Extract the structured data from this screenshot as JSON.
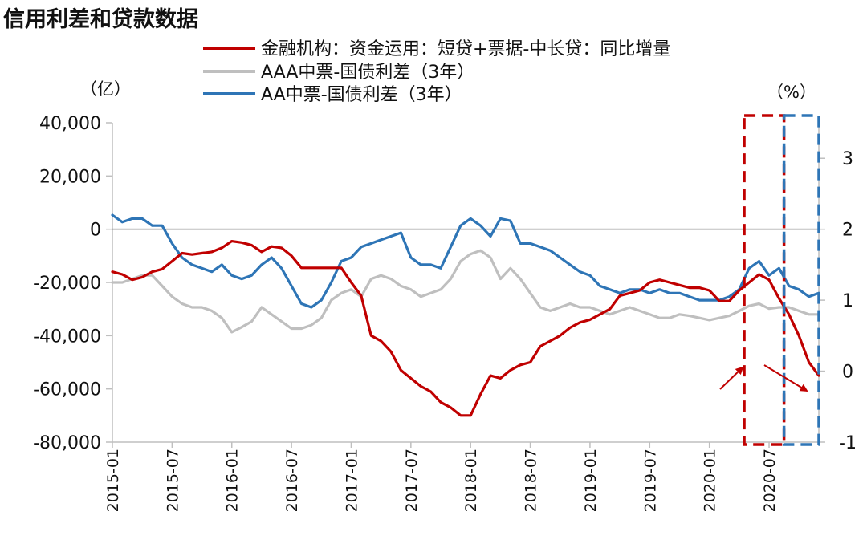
{
  "chart_data": {
    "type": "line",
    "title": "信用利差和贷款数据",
    "left_axis_unit": "（亿）",
    "right_axis_unit": "（%）",
    "left_axis": {
      "min": -80000,
      "max": 40000,
      "ticks": [
        40000,
        20000,
        0,
        -20000,
        -40000,
        -60000,
        -80000
      ],
      "tick_labels": [
        "40,000",
        "20,000",
        "0",
        "-20,000",
        "-40,000",
        "-60,000",
        "-80,000"
      ]
    },
    "right_axis": {
      "min": -1,
      "max": 3.5,
      "ticks": [
        3,
        2,
        1,
        0,
        -1
      ],
      "tick_labels": [
        "3",
        "2",
        "1",
        "0",
        "-1"
      ]
    },
    "x_tick_labels": [
      "2015-01",
      "2015-07",
      "2016-01",
      "2016-07",
      "2017-01",
      "2017-07",
      "2018-01",
      "2018-07",
      "2019-01",
      "2019-07",
      "2020-01",
      "2020-07"
    ],
    "x_range_months": [
      0,
      71
    ],
    "series": [
      {
        "name": "金融机构：资金运用：短贷+票据-中长贷：同比增量",
        "axis": "left",
        "color": "#c00000",
        "points": [
          [
            0,
            -16000
          ],
          [
            1,
            -17000
          ],
          [
            2,
            -19000
          ],
          [
            3,
            -18000
          ],
          [
            4,
            -16000
          ],
          [
            5,
            -15000
          ],
          [
            6,
            -12000
          ],
          [
            7,
            -9000
          ],
          [
            8,
            -9500
          ],
          [
            9,
            -9000
          ],
          [
            10,
            -8500
          ],
          [
            11,
            -7000
          ],
          [
            12,
            -4500
          ],
          [
            13,
            -5000
          ],
          [
            14,
            -6000
          ],
          [
            15,
            -8500
          ],
          [
            16,
            -6500
          ],
          [
            17,
            -7000
          ],
          [
            18,
            -10000
          ],
          [
            19,
            -14500
          ],
          [
            20,
            -14500
          ],
          [
            21,
            -14500
          ],
          [
            22,
            -14500
          ],
          [
            23,
            -14500
          ],
          [
            24,
            -20000
          ],
          [
            25,
            -25000
          ],
          [
            26,
            -40000
          ],
          [
            27,
            -42000
          ],
          [
            28,
            -46000
          ],
          [
            29,
            -53000
          ],
          [
            30,
            -56000
          ],
          [
            31,
            -59000
          ],
          [
            32,
            -61000
          ],
          [
            33,
            -65000
          ],
          [
            34,
            -67000
          ],
          [
            35,
            -70000
          ],
          [
            36,
            -70000
          ],
          [
            37,
            -62000
          ],
          [
            38,
            -55000
          ],
          [
            39,
            -56000
          ],
          [
            40,
            -53000
          ],
          [
            41,
            -51000
          ],
          [
            42,
            -50000
          ],
          [
            43,
            -44000
          ],
          [
            44,
            -42000
          ],
          [
            45,
            -40000
          ],
          [
            46,
            -37000
          ],
          [
            47,
            -35000
          ],
          [
            48,
            -34000
          ],
          [
            49,
            -32000
          ],
          [
            50,
            -30000
          ],
          [
            51,
            -25000
          ],
          [
            52,
            -24000
          ],
          [
            53,
            -23000
          ],
          [
            54,
            -20000
          ],
          [
            55,
            -19000
          ],
          [
            56,
            -20000
          ],
          [
            57,
            -21000
          ],
          [
            58,
            -22000
          ],
          [
            59,
            -22000
          ],
          [
            60,
            -23000
          ],
          [
            61,
            -27000
          ],
          [
            62,
            -27000
          ],
          [
            63,
            -23000
          ],
          [
            64,
            -20000
          ],
          [
            65,
            -17000
          ],
          [
            66,
            -19000
          ],
          [
            67,
            -26000
          ],
          [
            68,
            -32000
          ],
          [
            69,
            -40000
          ],
          [
            70,
            -50000
          ],
          [
            71,
            -55000
          ]
        ]
      },
      {
        "name": "AAA中票-国债利差（3年）",
        "axis": "right",
        "color": "#bfbfbf",
        "points": [
          [
            0,
            1.25
          ],
          [
            1,
            1.25
          ],
          [
            2,
            1.3
          ],
          [
            3,
            1.35
          ],
          [
            4,
            1.35
          ],
          [
            5,
            1.2
          ],
          [
            6,
            1.05
          ],
          [
            7,
            0.95
          ],
          [
            8,
            0.9
          ],
          [
            9,
            0.9
          ],
          [
            10,
            0.85
          ],
          [
            11,
            0.75
          ],
          [
            12,
            0.55
          ],
          [
            13,
            0.62
          ],
          [
            14,
            0.7
          ],
          [
            15,
            0.9
          ],
          [
            16,
            0.8
          ],
          [
            17,
            0.7
          ],
          [
            18,
            0.6
          ],
          [
            19,
            0.6
          ],
          [
            20,
            0.65
          ],
          [
            21,
            0.75
          ],
          [
            22,
            1.0
          ],
          [
            23,
            1.1
          ],
          [
            24,
            1.15
          ],
          [
            25,
            1.05
          ],
          [
            26,
            1.3
          ],
          [
            27,
            1.35
          ],
          [
            28,
            1.3
          ],
          [
            29,
            1.2
          ],
          [
            30,
            1.15
          ],
          [
            31,
            1.05
          ],
          [
            32,
            1.1
          ],
          [
            33,
            1.15
          ],
          [
            34,
            1.3
          ],
          [
            35,
            1.55
          ],
          [
            36,
            1.65
          ],
          [
            37,
            1.7
          ],
          [
            38,
            1.6
          ],
          [
            39,
            1.3
          ],
          [
            40,
            1.45
          ],
          [
            41,
            1.3
          ],
          [
            42,
            1.1
          ],
          [
            43,
            0.9
          ],
          [
            44,
            0.85
          ],
          [
            45,
            0.9
          ],
          [
            46,
            0.95
          ],
          [
            47,
            0.9
          ],
          [
            48,
            0.9
          ],
          [
            49,
            0.85
          ],
          [
            50,
            0.8
          ],
          [
            51,
            0.85
          ],
          [
            52,
            0.9
          ],
          [
            53,
            0.85
          ],
          [
            54,
            0.8
          ],
          [
            55,
            0.75
          ],
          [
            56,
            0.75
          ],
          [
            57,
            0.8
          ],
          [
            58,
            0.78
          ],
          [
            59,
            0.75
          ],
          [
            60,
            0.72
          ],
          [
            61,
            0.75
          ],
          [
            62,
            0.78
          ],
          [
            63,
            0.85
          ],
          [
            64,
            0.92
          ],
          [
            65,
            0.95
          ],
          [
            66,
            0.88
          ],
          [
            67,
            0.9
          ],
          [
            68,
            0.9
          ],
          [
            69,
            0.85
          ],
          [
            70,
            0.8
          ],
          [
            71,
            0.8
          ]
        ]
      },
      {
        "name": "AA中票-国债利差（3年）",
        "axis": "right",
        "color": "#2e75b6",
        "points": [
          [
            0,
            2.2
          ],
          [
            1,
            2.1
          ],
          [
            2,
            2.15
          ],
          [
            3,
            2.15
          ],
          [
            4,
            2.05
          ],
          [
            5,
            2.05
          ],
          [
            6,
            1.8
          ],
          [
            7,
            1.6
          ],
          [
            8,
            1.5
          ],
          [
            9,
            1.45
          ],
          [
            10,
            1.4
          ],
          [
            11,
            1.5
          ],
          [
            12,
            1.35
          ],
          [
            13,
            1.3
          ],
          [
            14,
            1.35
          ],
          [
            15,
            1.5
          ],
          [
            16,
            1.6
          ],
          [
            17,
            1.45
          ],
          [
            18,
            1.2
          ],
          [
            19,
            0.95
          ],
          [
            20,
            0.9
          ],
          [
            21,
            1.0
          ],
          [
            22,
            1.25
          ],
          [
            23,
            1.55
          ],
          [
            24,
            1.6
          ],
          [
            25,
            1.75
          ],
          [
            26,
            1.8
          ],
          [
            27,
            1.85
          ],
          [
            28,
            1.9
          ],
          [
            29,
            1.95
          ],
          [
            30,
            1.6
          ],
          [
            31,
            1.5
          ],
          [
            32,
            1.5
          ],
          [
            33,
            1.45
          ],
          [
            34,
            1.75
          ],
          [
            35,
            2.05
          ],
          [
            36,
            2.15
          ],
          [
            37,
            2.05
          ],
          [
            38,
            1.9
          ],
          [
            39,
            2.15
          ],
          [
            40,
            2.12
          ],
          [
            41,
            1.8
          ],
          [
            42,
            1.8
          ],
          [
            43,
            1.75
          ],
          [
            44,
            1.7
          ],
          [
            45,
            1.6
          ],
          [
            46,
            1.5
          ],
          [
            47,
            1.4
          ],
          [
            48,
            1.35
          ],
          [
            49,
            1.2
          ],
          [
            50,
            1.15
          ],
          [
            51,
            1.1
          ],
          [
            52,
            1.15
          ],
          [
            53,
            1.15
          ],
          [
            54,
            1.1
          ],
          [
            55,
            1.15
          ],
          [
            56,
            1.1
          ],
          [
            57,
            1.1
          ],
          [
            58,
            1.05
          ],
          [
            59,
            1.0
          ],
          [
            60,
            1.0
          ],
          [
            61,
            1.0
          ],
          [
            62,
            1.05
          ],
          [
            63,
            1.15
          ],
          [
            64,
            1.45
          ],
          [
            65,
            1.55
          ],
          [
            66,
            1.35
          ],
          [
            67,
            1.45
          ],
          [
            68,
            1.2
          ],
          [
            69,
            1.15
          ],
          [
            70,
            1.05
          ],
          [
            71,
            1.1
          ]
        ]
      }
    ],
    "annotations": [
      {
        "type": "dashed-box",
        "color": "#c00000",
        "from_month": 63.5,
        "to_month": 67.5
      },
      {
        "type": "dashed-box",
        "color": "#2e75b6",
        "from_month": 67.5,
        "to_month": 71
      },
      {
        "type": "arrow",
        "color": "#c00000",
        "direction": "up-right"
      },
      {
        "type": "arrow",
        "color": "#c00000",
        "direction": "down-right"
      }
    ]
  }
}
